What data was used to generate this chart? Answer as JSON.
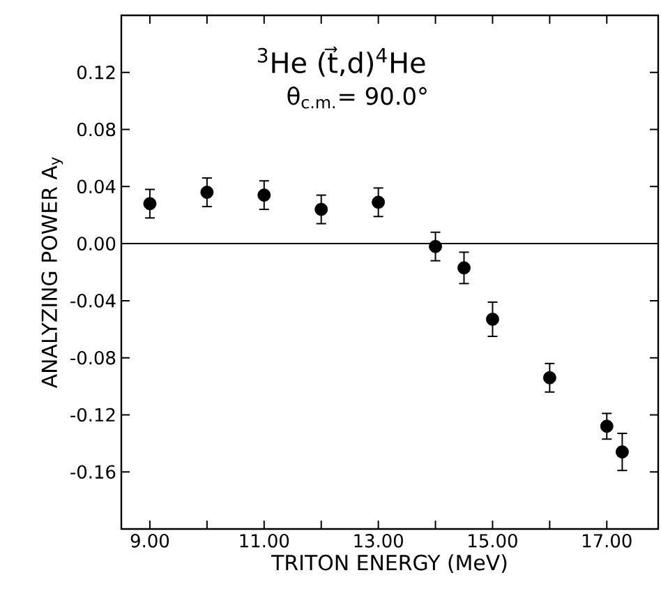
{
  "chart_data": {
    "type": "scatter",
    "title": "$^{3}$He (t⃗,d)$^{4}$He",
    "subtitle": "θ$_{c.m.}$= 90.0°",
    "xlabel": "TRITON ENERGY (MeV)",
    "ylabel": "ANALYZING POWER A$_{y}$",
    "x": [
      9.0,
      10.0,
      11.0,
      12.0,
      13.0,
      14.0,
      14.5,
      15.0,
      16.0,
      17.0,
      17.27
    ],
    "values": [
      0.028,
      0.036,
      0.034,
      0.024,
      0.029,
      -0.002,
      -0.017,
      -0.053,
      -0.094,
      -0.128,
      -0.146
    ],
    "errors": [
      0.01,
      0.01,
      0.01,
      0.01,
      0.01,
      0.01,
      0.011,
      0.012,
      0.01,
      0.009,
      0.013
    ],
    "color": "#000000",
    "marker": "circle",
    "xlim": [
      8.5,
      17.9
    ],
    "ylim": [
      -0.2,
      0.16
    ],
    "xticks": [
      {
        "value": 9,
        "label": "9.00"
      },
      {
        "value": 10,
        "label": null
      },
      {
        "value": 11,
        "label": "11.00"
      },
      {
        "value": 12,
        "label": null
      },
      {
        "value": 13,
        "label": "13.00"
      },
      {
        "value": 14,
        "label": null
      },
      {
        "value": 15,
        "label": "15.00"
      },
      {
        "value": 16,
        "label": null
      },
      {
        "value": 17,
        "label": "17.00"
      }
    ],
    "yticks": [
      {
        "value": 0.12,
        "label": "0.12"
      },
      {
        "value": 0.08,
        "label": "0.08"
      },
      {
        "value": 0.04,
        "label": "0.04"
      },
      {
        "value": 0,
        "label": "0.00"
      },
      {
        "value": -0.04,
        "label": "-0.04"
      },
      {
        "value": -0.08,
        "label": "-0.08"
      },
      {
        "value": -0.12,
        "label": "-0.12"
      },
      {
        "value": -0.16,
        "label": "-0.16"
      }
    ],
    "ref_lines": [
      {
        "axis": "y",
        "value": 0
      }
    ],
    "grid": false
  }
}
